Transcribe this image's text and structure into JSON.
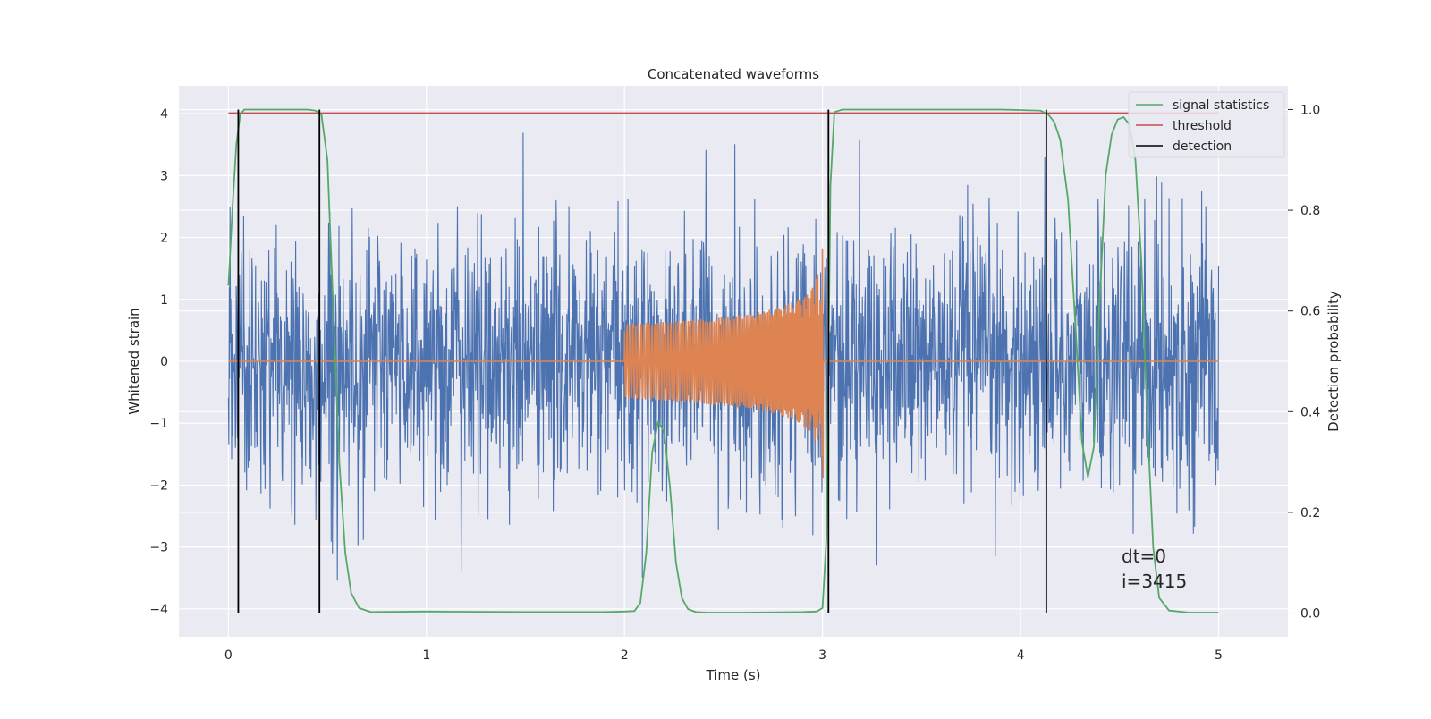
{
  "chart_data": {
    "type": "line",
    "title": "Concatenated waveforms",
    "xlabel": "Time (s)",
    "ylabel": "Whitened strain",
    "y2label": "Detection probability",
    "xlim": [
      -0.25,
      5.35
    ],
    "ylim": [
      -4.45,
      4.45
    ],
    "y2lim": [
      -0.047,
      1.047
    ],
    "xticks": [
      0,
      1,
      2,
      3,
      4,
      5
    ],
    "yticks": [
      -4,
      -3,
      -2,
      -1,
      0,
      1,
      2,
      3,
      4
    ],
    "y2ticks": [
      0.0,
      0.2,
      0.4,
      0.6,
      0.8,
      1.0
    ],
    "xtick_labels": [
      "0",
      "1",
      "2",
      "3",
      "4",
      "5"
    ],
    "ytick_labels": [
      "−4",
      "−3",
      "−2",
      "−1",
      "0",
      "1",
      "2",
      "3",
      "4"
    ],
    "y2tick_labels": [
      "0.0",
      "0.2",
      "0.4",
      "0.6",
      "0.8",
      "1.0"
    ],
    "grid": true,
    "legend_position": "top-right",
    "colors": {
      "noise": "#4c72b0",
      "waveform": "#dd8452",
      "signal_statistics": "#55a868",
      "threshold": "#c44e52",
      "detection": "#000000",
      "axes_bg": "#eaeaf2",
      "grid": "#ffffff"
    },
    "series": [
      {
        "key": "noise",
        "axis": "left",
        "x_range": [
          0,
          5
        ],
        "approx_std": 1.05,
        "approx_extremes": [
          -4.05,
          4.08
        ]
      },
      {
        "key": "waveform",
        "axis": "left",
        "x_range": [
          0,
          5
        ],
        "chirp_start": 2.0,
        "merger_time": 3.0,
        "peak_amplitude": 2.4
      },
      {
        "key": "signal_statistics",
        "name": "signal statistics",
        "axis": "right",
        "x": [
          0.0,
          0.02,
          0.04,
          0.06,
          0.08,
          0.1,
          0.15,
          0.2,
          0.3,
          0.4,
          0.44,
          0.47,
          0.5,
          0.53,
          0.56,
          0.59,
          0.62,
          0.66,
          0.72,
          1.0,
          1.5,
          1.9,
          2.0,
          2.05,
          2.08,
          2.11,
          2.14,
          2.17,
          2.2,
          2.23,
          2.26,
          2.29,
          2.32,
          2.36,
          2.42,
          2.6,
          2.9,
          2.97,
          3.0,
          3.02,
          3.04,
          3.06,
          3.1,
          3.4,
          3.9,
          4.1,
          4.14,
          4.17,
          4.2,
          4.24,
          4.28,
          4.31,
          4.34,
          4.37,
          4.4,
          4.43,
          4.46,
          4.49,
          4.52,
          4.55,
          4.58,
          4.61,
          4.64,
          4.67,
          4.7,
          4.75,
          4.85,
          5.0
        ],
        "values": [
          0.65,
          0.8,
          0.93,
          0.99,
          1.0,
          1.0,
          1.0,
          1.0,
          1.0,
          1.0,
          0.998,
          0.99,
          0.9,
          0.6,
          0.3,
          0.12,
          0.04,
          0.01,
          0.002,
          0.003,
          0.002,
          0.002,
          0.003,
          0.004,
          0.02,
          0.12,
          0.32,
          0.38,
          0.36,
          0.25,
          0.1,
          0.03,
          0.008,
          0.002,
          0.001,
          0.001,
          0.002,
          0.003,
          0.01,
          0.15,
          0.85,
          0.995,
          1.0,
          1.0,
          1.0,
          0.998,
          0.99,
          0.975,
          0.94,
          0.82,
          0.55,
          0.34,
          0.27,
          0.33,
          0.62,
          0.87,
          0.95,
          0.98,
          0.985,
          0.97,
          0.9,
          0.7,
          0.38,
          0.13,
          0.03,
          0.005,
          0.001,
          0.001
        ]
      },
      {
        "key": "threshold",
        "name": "threshold",
        "axis": "right",
        "x": [
          0,
          5
        ],
        "values": [
          0.993,
          0.993
        ]
      },
      {
        "key": "detection",
        "name": "detection",
        "axis": "right",
        "x": [
          0.05,
          0.46,
          3.03,
          4.13
        ],
        "values_from": 0.0,
        "values_to": 1.0
      }
    ],
    "legend": [
      "signal statistics",
      "threshold",
      "detection"
    ],
    "annotation": [
      "dt=0",
      "i=3415"
    ]
  }
}
